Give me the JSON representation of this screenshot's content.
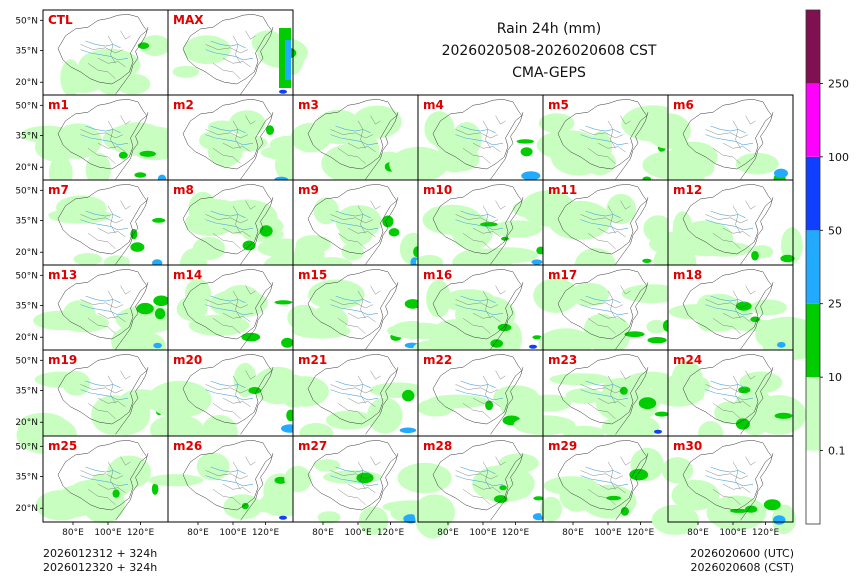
{
  "header": {
    "title": "Rain 24h (mm)",
    "period": "2026020508-2026020608 CST",
    "model": "CMA-GEPS"
  },
  "footer": {
    "init_utc": "2026012312 + 324h",
    "init_cst": "2026012320 + 324h",
    "valid_utc": "2026020600 (UTC)",
    "valid_cst": "2026020608 (CST)"
  },
  "chart_data": {
    "type": "heatmap",
    "variable": "24h accumulated precipitation",
    "units": "mm",
    "panels_top": [
      "CTL",
      "MAX"
    ],
    "panels_members": [
      "m1",
      "m2",
      "m3",
      "m4",
      "m5",
      "m6",
      "m7",
      "m8",
      "m9",
      "m10",
      "m11",
      "m12",
      "m13",
      "m14",
      "m15",
      "m16",
      "m17",
      "m18",
      "m19",
      "m20",
      "m21",
      "m22",
      "m23",
      "m24",
      "m25",
      "m26",
      "m27",
      "m28",
      "m29",
      "m30"
    ],
    "x_ticks": [
      "80°E",
      "100°E",
      "120°E"
    ],
    "y_ticks": [
      "50°N",
      "35°N",
      "20°N"
    ],
    "colorbar": {
      "levels": [
        "0.1",
        "10",
        "25",
        "50",
        "100",
        "250"
      ],
      "colors": [
        "#ffffff",
        "#c8ffc0",
        "#00cc00",
        "#22aaff",
        "#1040ff",
        "#ff00ff",
        "#801050"
      ]
    }
  }
}
